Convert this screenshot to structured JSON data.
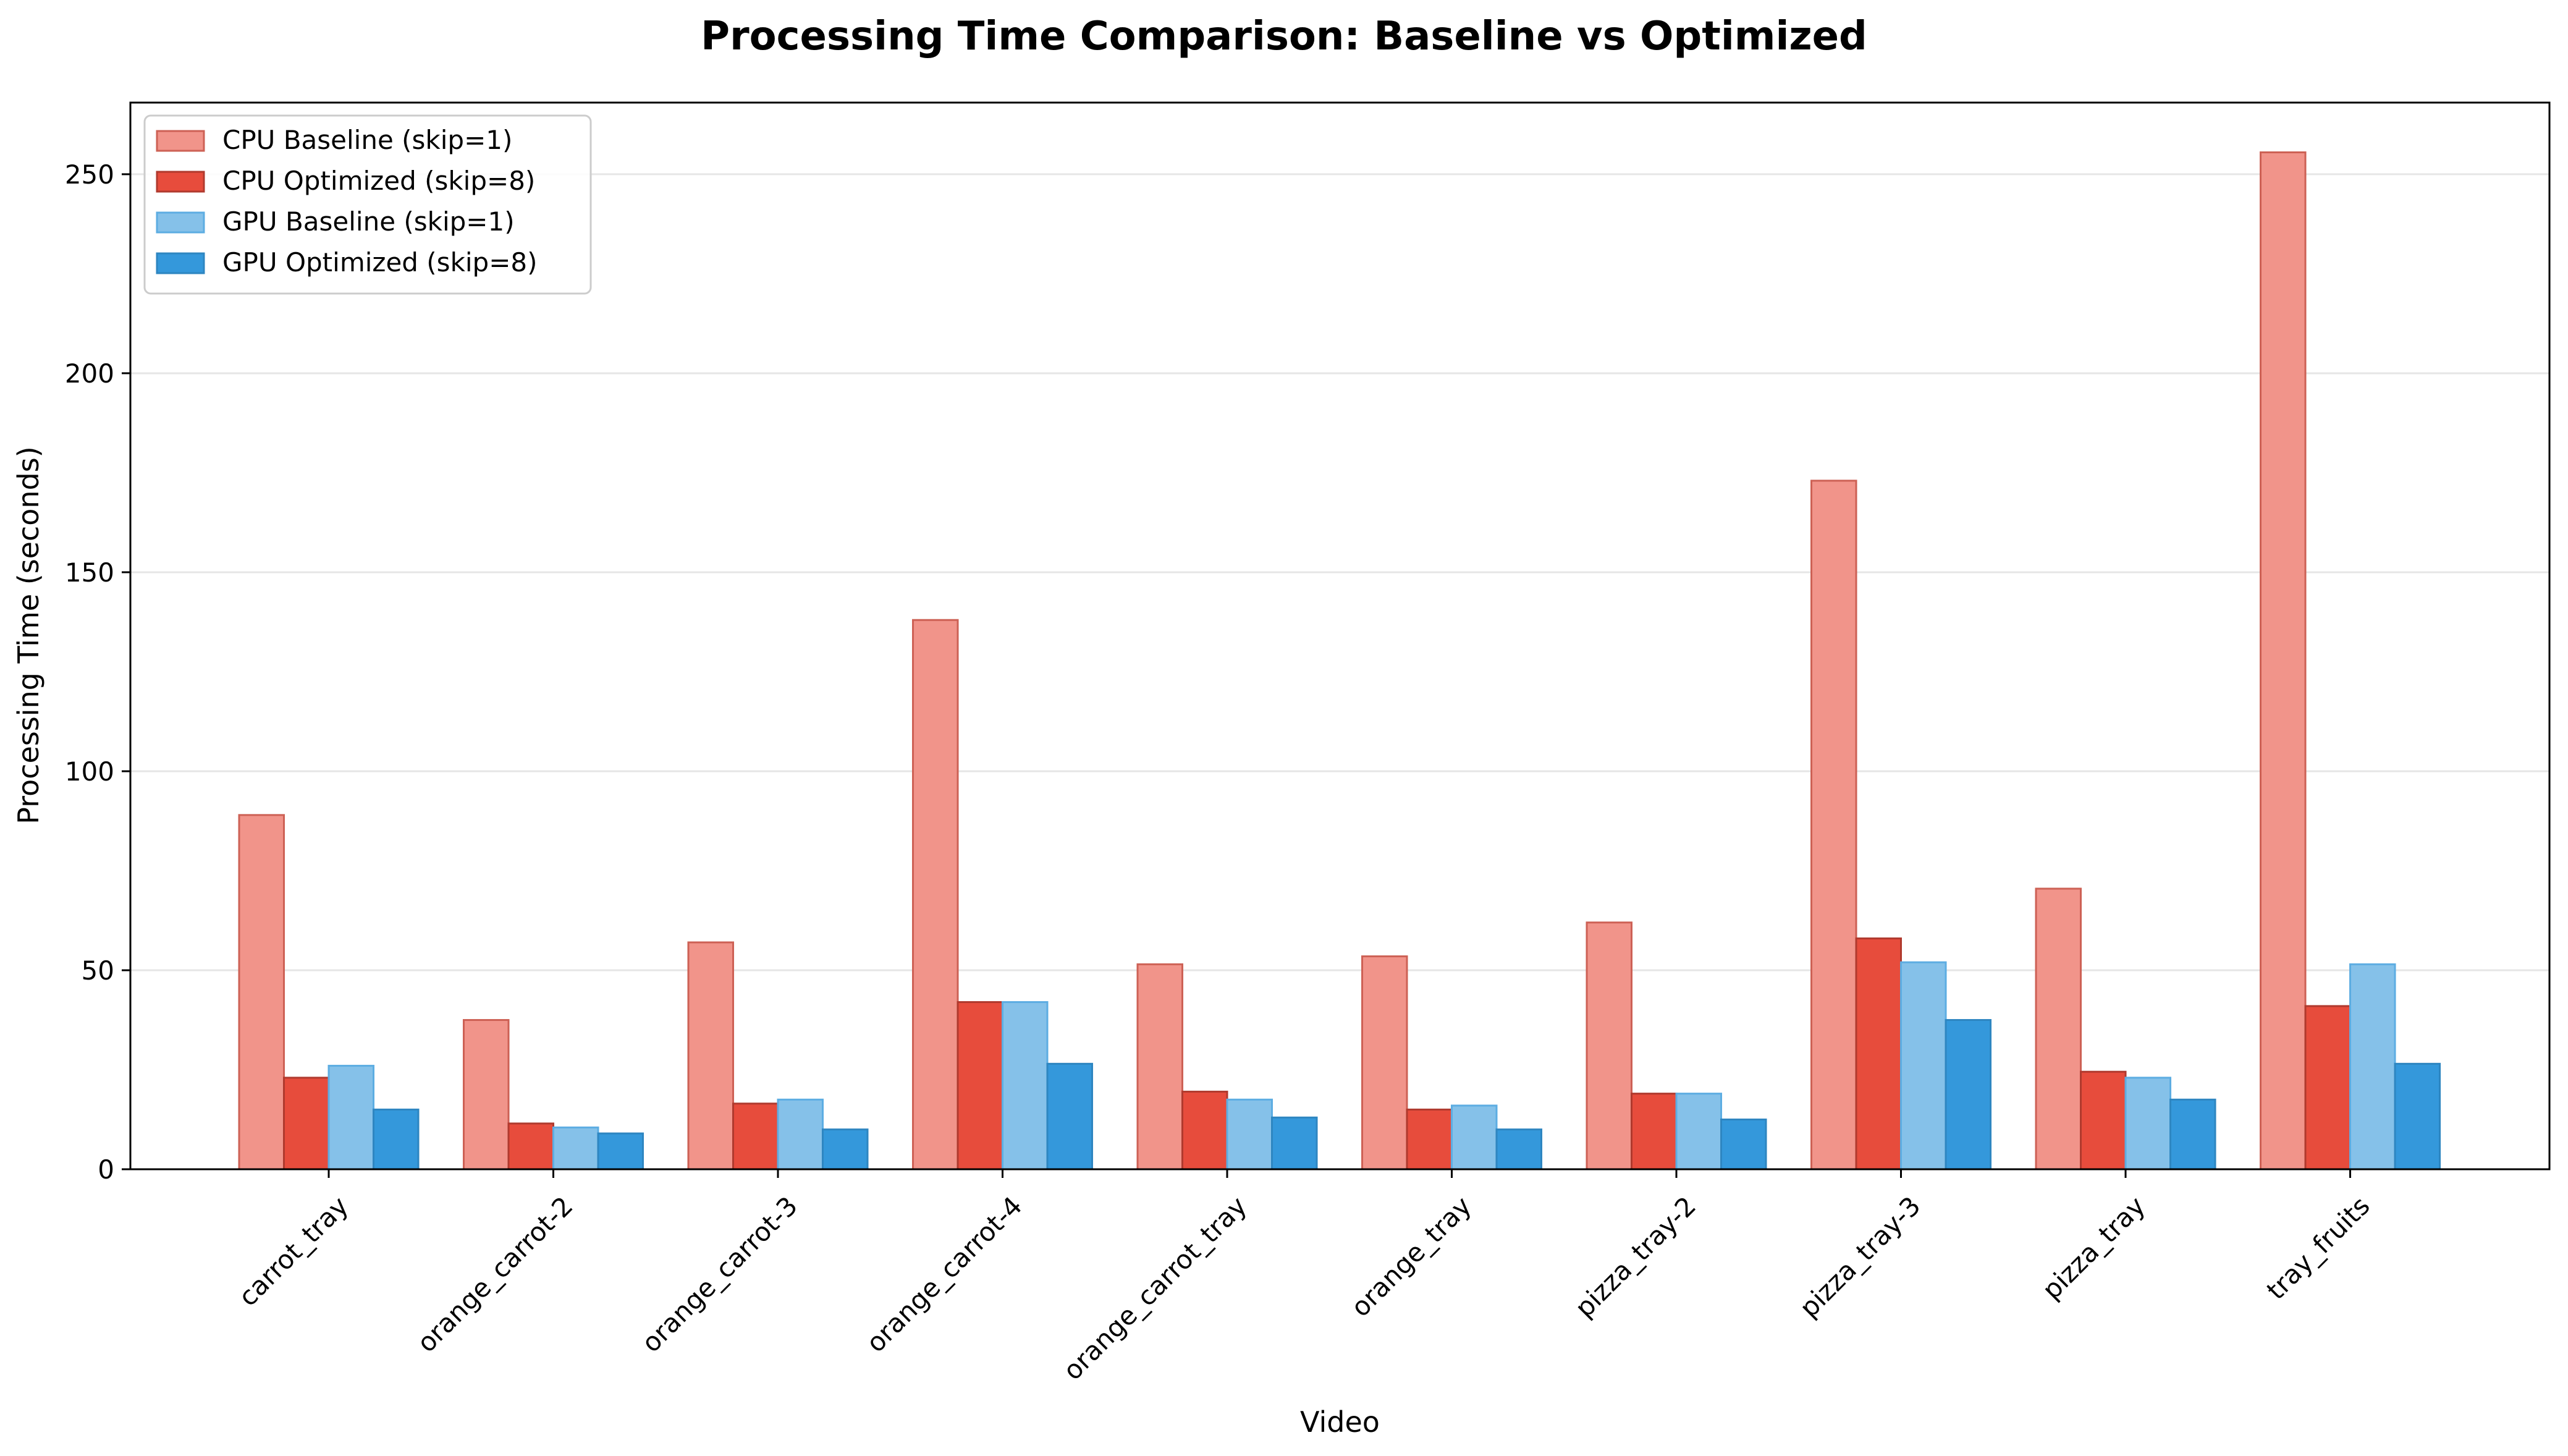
{
  "chart_data": {
    "type": "bar",
    "title": "Processing Time Comparison: Baseline vs Optimized",
    "xlabel": "Video",
    "ylabel": "Processing Time (seconds)",
    "ylim": [
      0,
      268
    ],
    "yticks": [
      0,
      50,
      100,
      150,
      200,
      250
    ],
    "grid": "y",
    "legend_position": "top-left",
    "categories": [
      "carrot_tray",
      "orange_carrot-2",
      "orange_carrot-3",
      "orange_carrot-4",
      "orange_carrot_tray",
      "orange_tray",
      "pizza_tray-2",
      "pizza_tray-3",
      "pizza_tray",
      "tray_fruits"
    ],
    "series": [
      {
        "name": "CPU Baseline (skip=1)",
        "color": "#f1948a",
        "edge": "#cd6155",
        "values": [
          89,
          37.5,
          57,
          138,
          51.5,
          53.5,
          62,
          173,
          70.5,
          255.5
        ]
      },
      {
        "name": "CPU Optimized (skip=8)",
        "color": "#e74c3c",
        "edge": "#b03a2e",
        "values": [
          23,
          11.5,
          16.5,
          42,
          19.5,
          15,
          19,
          58,
          24.5,
          41
        ]
      },
      {
        "name": "GPU Baseline (skip=1)",
        "color": "#85c1e9",
        "edge": "#5dade2",
        "values": [
          26,
          10.5,
          17.5,
          42,
          17.5,
          16,
          19,
          52,
          23,
          51.5
        ]
      },
      {
        "name": "GPU Optimized (skip=8)",
        "color": "#3498db",
        "edge": "#2e86c1",
        "values": [
          15,
          9,
          10,
          26.5,
          13,
          10,
          12.5,
          37.5,
          17.5,
          26.5
        ]
      }
    ]
  }
}
